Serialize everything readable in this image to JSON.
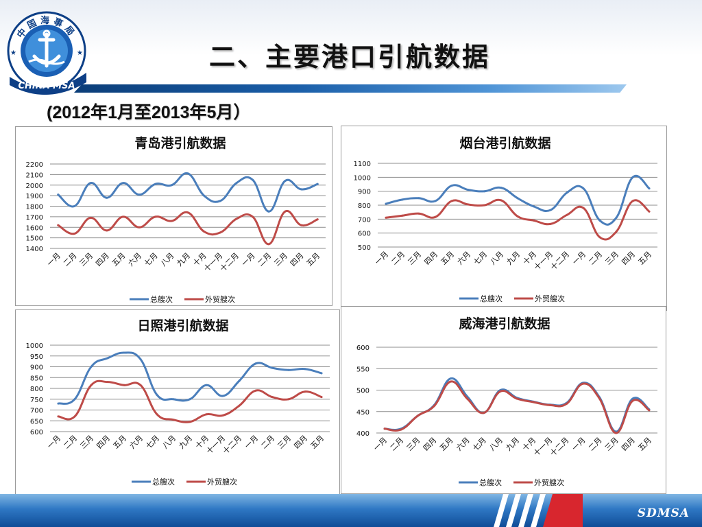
{
  "header": {
    "title": "二、主要港口引航数据",
    "subtitle": "(2012年1月至2013年5月）",
    "logo_top_text": "中国海事局",
    "logo_bottom_text": "CHINA MSA"
  },
  "footer": {
    "brand": "SDMSA"
  },
  "colors": {
    "total": "#4a7ebb",
    "foreign": "#be4b48",
    "grid": "#8c8c8c"
  },
  "chart_data": [
    {
      "type": "line",
      "title": "青岛港引航数据",
      "categories": [
        "一月",
        "二月",
        "三月",
        "四月",
        "五月",
        "六月",
        "七月",
        "八月",
        "九月",
        "十月",
        "十一月",
        "十二月",
        "一月",
        "二月",
        "三月",
        "四月",
        "五月"
      ],
      "ylim": [
        1400,
        2200
      ],
      "yticks": [
        1400,
        1500,
        1600,
        1700,
        1800,
        1900,
        2000,
        2100,
        2200
      ],
      "grid": true,
      "legend": "bottom",
      "series": [
        {
          "name": "总艘次",
          "color": "#4a7ebb",
          "values": [
            1910,
            1800,
            2020,
            1880,
            2020,
            1910,
            2010,
            2000,
            2110,
            1900,
            1850,
            2020,
            2050,
            1750,
            2040,
            1960,
            2010
          ]
        },
        {
          "name": "外贸艘次",
          "color": "#be4b48",
          "values": [
            1620,
            1540,
            1690,
            1570,
            1700,
            1600,
            1700,
            1660,
            1740,
            1560,
            1550,
            1680,
            1700,
            1440,
            1750,
            1620,
            1675
          ]
        }
      ]
    },
    {
      "type": "line",
      "title": "烟台港引航数据",
      "categories": [
        "一月",
        "二月",
        "三月",
        "四月",
        "五月",
        "六月",
        "七月",
        "八月",
        "九月",
        "十月",
        "十一月",
        "十二月",
        "一月",
        "二月",
        "三月",
        "四月",
        "五月"
      ],
      "ylim": [
        500,
        1100
      ],
      "yticks": [
        500,
        600,
        700,
        800,
        900,
        1000,
        1100
      ],
      "grid": true,
      "legend": "bottom",
      "series": [
        {
          "name": "总艘次",
          "color": "#4a7ebb",
          "values": [
            810,
            840,
            850,
            830,
            940,
            910,
            900,
            925,
            850,
            790,
            765,
            890,
            920,
            690,
            710,
            1000,
            920
          ]
        },
        {
          "name": "外贸艘次",
          "color": "#be4b48",
          "values": [
            710,
            725,
            740,
            715,
            830,
            805,
            800,
            835,
            720,
            690,
            665,
            730,
            780,
            570,
            610,
            830,
            755
          ]
        }
      ]
    },
    {
      "type": "line",
      "title": "日照港引航数据",
      "categories": [
        "一月",
        "二月",
        "三月",
        "四月",
        "五月",
        "六月",
        "七月",
        "八月",
        "九月",
        "十月",
        "十一月",
        "十二月",
        "一月",
        "二月",
        "三月",
        "四月",
        "五月"
      ],
      "ylim": [
        600,
        1000
      ],
      "yticks": [
        600,
        650,
        700,
        750,
        800,
        850,
        900,
        950,
        1000
      ],
      "grid": true,
      "legend": "bottom",
      "series": [
        {
          "name": "总艘次",
          "color": "#4a7ebb",
          "values": [
            730,
            750,
            900,
            940,
            965,
            935,
            770,
            750,
            750,
            815,
            765,
            835,
            915,
            895,
            885,
            890,
            870
          ]
        },
        {
          "name": "外贸艘次",
          "color": "#be4b48",
          "values": [
            670,
            670,
            815,
            830,
            815,
            815,
            680,
            655,
            645,
            680,
            675,
            720,
            790,
            760,
            750,
            785,
            760
          ]
        }
      ]
    },
    {
      "type": "line",
      "title": "威海港引航数据",
      "categories": [
        "一月",
        "二月",
        "三月",
        "四月",
        "五月",
        "六月",
        "七月",
        "八月",
        "九月",
        "十月",
        "十一月",
        "十二月",
        "一月",
        "二月",
        "三月",
        "四月",
        "五月"
      ],
      "ylim": [
        400,
        600
      ],
      "yticks": [
        400,
        450,
        500,
        550,
        600
      ],
      "grid": true,
      "legend": "bottom",
      "series": [
        {
          "name": "总艘次",
          "color": "#4a7ebb",
          "values": [
            410,
            410,
            440,
            465,
            527,
            485,
            447,
            500,
            482,
            473,
            466,
            470,
            517,
            483,
            403,
            480,
            455
          ]
        },
        {
          "name": "外贸艘次",
          "color": "#be4b48",
          "values": [
            410,
            408,
            440,
            463,
            520,
            480,
            447,
            497,
            480,
            472,
            465,
            468,
            515,
            480,
            400,
            475,
            453
          ]
        }
      ]
    }
  ]
}
